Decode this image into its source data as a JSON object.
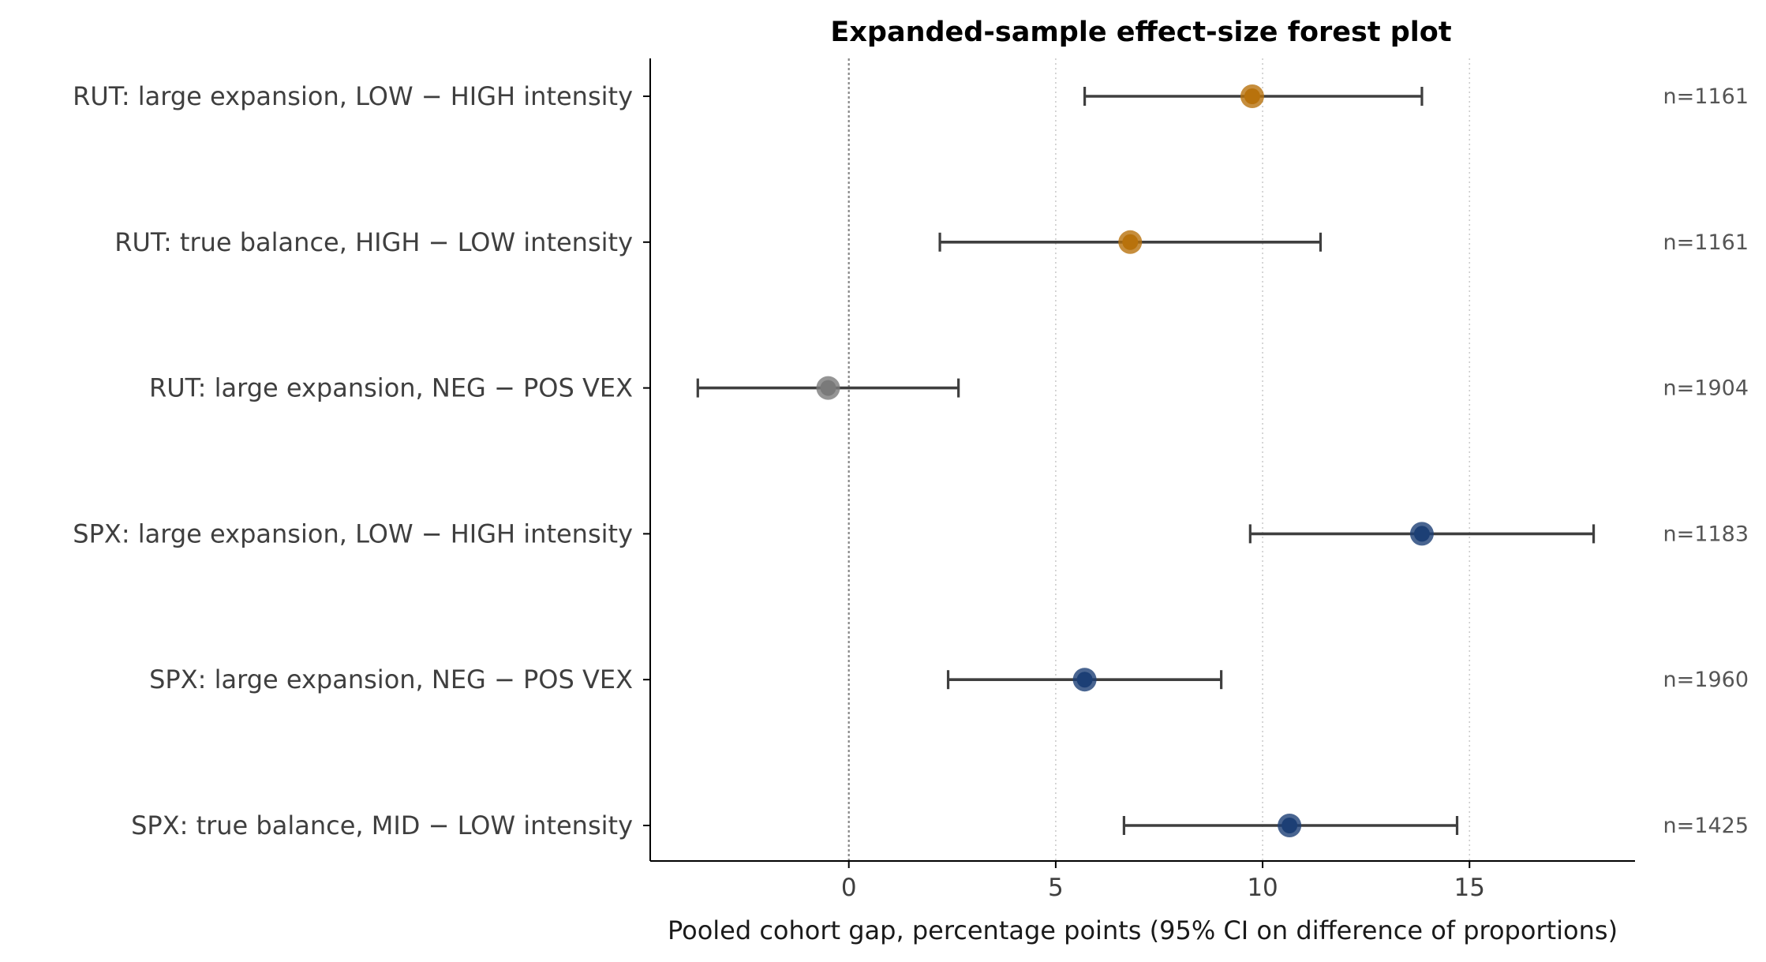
{
  "chart_data": {
    "type": "forest",
    "title": "Expanded-sample effect-size forest plot",
    "xlabel": "Pooled cohort gap, percentage points (95% CI on difference of proportions)",
    "ylabel": "",
    "xlim": [
      -4.8,
      19.0
    ],
    "xticks": [
      0,
      5,
      10,
      15
    ],
    "xtick_labels": [
      "0",
      "5",
      "10",
      "15"
    ],
    "reference_line": 0,
    "grid": "vertical dotted at x ticks",
    "rows": [
      {
        "label": "RUT: large expansion, LOW − HIGH intensity",
        "estimate": 9.75,
        "ci_low": 5.7,
        "ci_high": 13.85,
        "n_label": "n=1161",
        "color": "#b8720c"
      },
      {
        "label": "RUT: true balance, HIGH − LOW intensity",
        "estimate": 6.8,
        "ci_low": 2.2,
        "ci_high": 11.4,
        "n_label": "n=1161",
        "color": "#b8720c"
      },
      {
        "label": "RUT: large expansion, NEG − POS VEX",
        "estimate": -0.5,
        "ci_low": -3.65,
        "ci_high": 2.65,
        "n_label": "n=1904",
        "color": "#7a7a7a"
      },
      {
        "label": "SPX: large expansion, LOW − HIGH intensity",
        "estimate": 13.85,
        "ci_low": 9.7,
        "ci_high": 18.0,
        "n_label": "n=1183",
        "color": "#1c3f75"
      },
      {
        "label": "SPX: large expansion, NEG − POS VEX",
        "estimate": 5.7,
        "ci_low": 2.4,
        "ci_high": 9.0,
        "n_label": "n=1960",
        "color": "#1c3f75"
      },
      {
        "label": "SPX: true balance, MID − LOW intensity",
        "estimate": 10.65,
        "ci_low": 6.65,
        "ci_high": 14.7,
        "n_label": "n=1425",
        "color": "#1c3f75"
      }
    ],
    "colors": {
      "rut": "#b8720c",
      "neutral": "#7a7a7a",
      "spx": "#1c3f75",
      "whisker": "#3f3f3f"
    }
  }
}
